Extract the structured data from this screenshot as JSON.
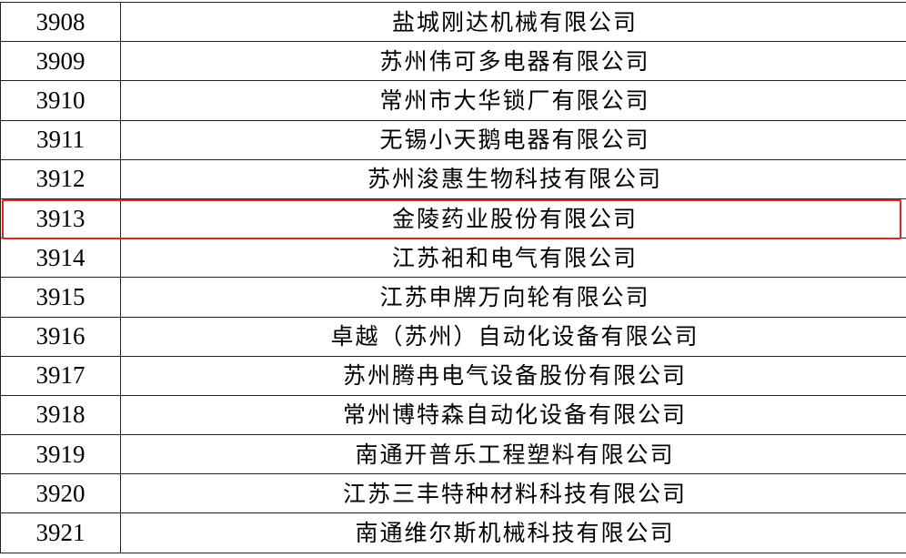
{
  "table": {
    "rows": [
      {
        "id": "3908",
        "name": "盐城刚达机械有限公司"
      },
      {
        "id": "3909",
        "name": "苏州伟可多电器有限公司"
      },
      {
        "id": "3910",
        "name": "常州市大华锁厂有限公司"
      },
      {
        "id": "3911",
        "name": "无锡小天鹅电器有限公司"
      },
      {
        "id": "3912",
        "name": "苏州浚惠生物科技有限公司"
      },
      {
        "id": "3913",
        "name": "金陵药业股份有限公司"
      },
      {
        "id": "3914",
        "name": "江苏衵和电气有限公司"
      },
      {
        "id": "3915",
        "name": "江苏申牌万向轮有限公司"
      },
      {
        "id": "3916",
        "name": "卓越（苏州）自动化设备有限公司"
      },
      {
        "id": "3917",
        "name": "苏州腾冉电气设备股份有限公司"
      },
      {
        "id": "3918",
        "name": "常州博特森自动化设备有限公司"
      },
      {
        "id": "3919",
        "name": "南通开普乐工程塑料有限公司"
      },
      {
        "id": "3920",
        "name": "江苏三丰特种材料科技有限公司"
      },
      {
        "id": "3921",
        "name": "南通维尔斯机械科技有限公司"
      }
    ],
    "highlighted_row": "3913",
    "highlight_color": "#e8231f"
  }
}
